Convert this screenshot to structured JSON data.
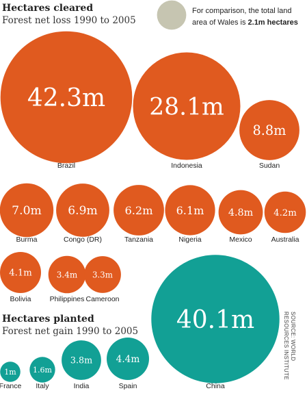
{
  "colors": {
    "cleared": "#e05a1f",
    "planted": "#12a095",
    "reference": "#c6c5b1"
  },
  "chart_data": [
    {
      "type": "bubble",
      "title": "Hectares cleared",
      "subtitle": "Forest net loss 1990 to 2005",
      "unit": "hectares",
      "items": [
        {
          "name": "Brazil",
          "value": 42.3,
          "label": "42.3m"
        },
        {
          "name": "Indonesia",
          "value": 28.1,
          "label": "28.1m"
        },
        {
          "name": "Sudan",
          "value": 8.8,
          "label": "8.8m"
        },
        {
          "name": "Burma",
          "value": 7.0,
          "label": "7.0m"
        },
        {
          "name": "Congo (DR)",
          "value": 6.9,
          "label": "6.9m"
        },
        {
          "name": "Tanzania",
          "value": 6.2,
          "label": "6.2m"
        },
        {
          "name": "Nigeria",
          "value": 6.1,
          "label": "6.1m"
        },
        {
          "name": "Mexico",
          "value": 4.8,
          "label": "4.8m"
        },
        {
          "name": "Australia",
          "value": 4.2,
          "label": "4.2m"
        },
        {
          "name": "Bolivia",
          "value": 4.1,
          "label": "4.1m"
        },
        {
          "name": "Philippines",
          "value": 3.4,
          "label": "3.4m"
        },
        {
          "name": "Cameroon",
          "value": 3.3,
          "label": "3.3m"
        }
      ]
    },
    {
      "type": "bubble",
      "title": "Hectares planted",
      "subtitle": "Forest net gain 1990 to 2005",
      "unit": "hectares",
      "items": [
        {
          "name": "China",
          "value": 40.1,
          "label": "40.1m"
        },
        {
          "name": "France",
          "value": 1.0,
          "label": "1m"
        },
        {
          "name": "Italy",
          "value": 1.6,
          "label": "1.6m"
        },
        {
          "name": "India",
          "value": 3.8,
          "label": "3.8m"
        },
        {
          "name": "Spain",
          "value": 4.4,
          "label": "4.4m"
        }
      ]
    }
  ],
  "reference": {
    "value": 2.1,
    "text_line1": "For comparison, the total land",
    "text_line2_prefix": "area of Wales is ",
    "text_line2_bold": "2.1m hectares"
  },
  "source": {
    "line1": "SOURCE: WORLD",
    "line2": "RESOURCES INSTITUTE"
  }
}
